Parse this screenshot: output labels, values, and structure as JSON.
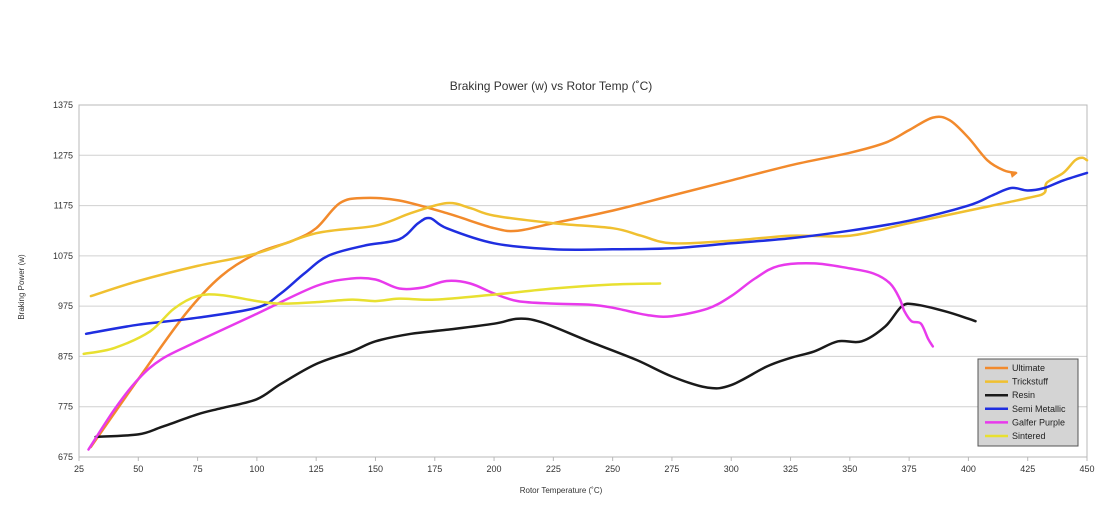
{
  "chart_data": {
    "type": "line",
    "title": "Braking Power (w) vs Rotor Temp (˚C)",
    "xlabel": "Rotor Temperature (˚C)",
    "ylabel": "Braking Power (w)",
    "xlim": [
      25,
      450
    ],
    "ylim": [
      675,
      1375
    ],
    "xticks": [
      25,
      50,
      75,
      100,
      125,
      150,
      175,
      200,
      225,
      250,
      275,
      300,
      325,
      350,
      375,
      400,
      425,
      450
    ],
    "yticks": [
      675,
      775,
      875,
      975,
      1075,
      1175,
      1275,
      1375
    ],
    "grid": "horizontal",
    "legend": "bottom-right",
    "series": [
      {
        "name": "Ultimate",
        "color": "#f28a2c",
        "points": [
          [
            30,
            695
          ],
          [
            50,
            830
          ],
          [
            70,
            960
          ],
          [
            85,
            1035
          ],
          [
            100,
            1080
          ],
          [
            115,
            1105
          ],
          [
            125,
            1130
          ],
          [
            135,
            1180
          ],
          [
            145,
            1190
          ],
          [
            160,
            1185
          ],
          [
            180,
            1160
          ],
          [
            200,
            1130
          ],
          [
            210,
            1125
          ],
          [
            225,
            1140
          ],
          [
            250,
            1165
          ],
          [
            275,
            1195
          ],
          [
            300,
            1225
          ],
          [
            325,
            1255
          ],
          [
            350,
            1280
          ],
          [
            365,
            1300
          ],
          [
            375,
            1325
          ],
          [
            385,
            1350
          ],
          [
            392,
            1345
          ],
          [
            400,
            1310
          ],
          [
            408,
            1265
          ],
          [
            415,
            1245
          ],
          [
            420,
            1240
          ]
        ]
      },
      {
        "name": "Trickstuff",
        "color": "#f0c030",
        "points": [
          [
            30,
            995
          ],
          [
            50,
            1025
          ],
          [
            75,
            1055
          ],
          [
            100,
            1080
          ],
          [
            125,
            1120
          ],
          [
            150,
            1135
          ],
          [
            165,
            1160
          ],
          [
            180,
            1180
          ],
          [
            190,
            1170
          ],
          [
            200,
            1155
          ],
          [
            225,
            1140
          ],
          [
            250,
            1130
          ],
          [
            262,
            1115
          ],
          [
            275,
            1100
          ],
          [
            300,
            1105
          ],
          [
            325,
            1115
          ],
          [
            350,
            1115
          ],
          [
            375,
            1140
          ],
          [
            400,
            1165
          ],
          [
            425,
            1190
          ],
          [
            432,
            1200
          ],
          [
            433,
            1220
          ],
          [
            440,
            1240
          ],
          [
            445,
            1265
          ],
          [
            448,
            1270
          ],
          [
            450,
            1265
          ]
        ]
      },
      {
        "name": "Resin",
        "color": "#1a1a1a",
        "points": [
          [
            32,
            715
          ],
          [
            50,
            720
          ],
          [
            60,
            735
          ],
          [
            75,
            760
          ],
          [
            85,
            772
          ],
          [
            100,
            790
          ],
          [
            110,
            820
          ],
          [
            125,
            860
          ],
          [
            140,
            885
          ],
          [
            150,
            905
          ],
          [
            165,
            920
          ],
          [
            180,
            928
          ],
          [
            200,
            940
          ],
          [
            210,
            950
          ],
          [
            220,
            943
          ],
          [
            240,
            905
          ],
          [
            260,
            868
          ],
          [
            275,
            835
          ],
          [
            290,
            813
          ],
          [
            300,
            818
          ],
          [
            315,
            855
          ],
          [
            325,
            872
          ],
          [
            335,
            885
          ],
          [
            345,
            905
          ],
          [
            355,
            905
          ],
          [
            365,
            935
          ],
          [
            372,
            975
          ],
          [
            378,
            978
          ],
          [
            390,
            965
          ],
          [
            400,
            950
          ],
          [
            403,
            945
          ]
        ]
      },
      {
        "name": "Semi Metallic",
        "color": "#1f2ee0",
        "points": [
          [
            28,
            920
          ],
          [
            50,
            938
          ],
          [
            75,
            952
          ],
          [
            100,
            972
          ],
          [
            110,
            1000
          ],
          [
            120,
            1040
          ],
          [
            130,
            1075
          ],
          [
            145,
            1095
          ],
          [
            160,
            1108
          ],
          [
            168,
            1140
          ],
          [
            173,
            1150
          ],
          [
            180,
            1130
          ],
          [
            200,
            1100
          ],
          [
            225,
            1088
          ],
          [
            250,
            1088
          ],
          [
            275,
            1090
          ],
          [
            300,
            1100
          ],
          [
            325,
            1110
          ],
          [
            350,
            1125
          ],
          [
            375,
            1145
          ],
          [
            400,
            1175
          ],
          [
            410,
            1195
          ],
          [
            418,
            1210
          ],
          [
            425,
            1205
          ],
          [
            432,
            1210
          ],
          [
            440,
            1225
          ],
          [
            450,
            1240
          ]
        ]
      },
      {
        "name": "Galfer Purple",
        "color": "#e83aec",
        "points": [
          [
            29,
            690
          ],
          [
            40,
            770
          ],
          [
            50,
            830
          ],
          [
            60,
            870
          ],
          [
            75,
            905
          ],
          [
            100,
            960
          ],
          [
            125,
            1015
          ],
          [
            140,
            1030
          ],
          [
            150,
            1028
          ],
          [
            160,
            1010
          ],
          [
            170,
            1012
          ],
          [
            180,
            1025
          ],
          [
            190,
            1020
          ],
          [
            200,
            1000
          ],
          [
            210,
            985
          ],
          [
            225,
            980
          ],
          [
            240,
            978
          ],
          [
            250,
            972
          ],
          [
            265,
            957
          ],
          [
            275,
            955
          ],
          [
            290,
            970
          ],
          [
            300,
            995
          ],
          [
            310,
            1030
          ],
          [
            320,
            1055
          ],
          [
            335,
            1060
          ],
          [
            350,
            1050
          ],
          [
            360,
            1040
          ],
          [
            367,
            1020
          ],
          [
            371,
            990
          ],
          [
            373,
            965
          ],
          [
            376,
            945
          ],
          [
            380,
            940
          ],
          [
            383,
            910
          ],
          [
            385,
            895
          ]
        ]
      },
      {
        "name": "Sintered",
        "color": "#e8e030",
        "points": [
          [
            27,
            880
          ],
          [
            40,
            892
          ],
          [
            55,
            925
          ],
          [
            65,
            970
          ],
          [
            75,
            995
          ],
          [
            85,
            997
          ],
          [
            100,
            985
          ],
          [
            110,
            980
          ],
          [
            125,
            983
          ],
          [
            140,
            988
          ],
          [
            150,
            985
          ],
          [
            160,
            990
          ],
          [
            175,
            988
          ],
          [
            200,
            998
          ],
          [
            225,
            1010
          ],
          [
            250,
            1018
          ],
          [
            270,
            1020
          ]
        ]
      }
    ]
  }
}
